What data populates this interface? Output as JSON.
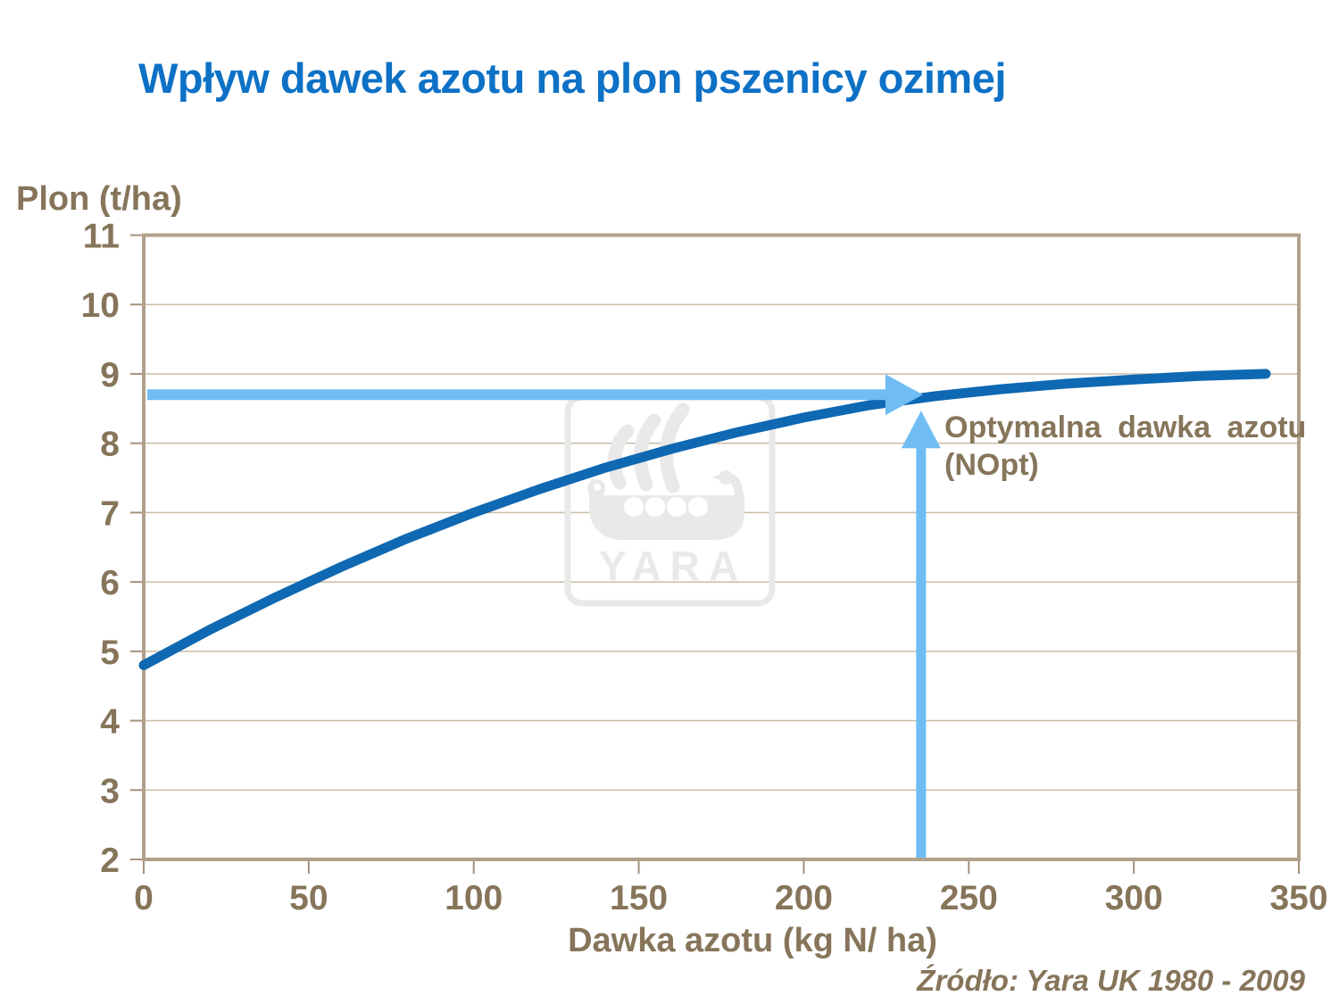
{
  "title": "Wpływ dawek azotu na plon pszenicy ozimej",
  "y_axis_title": "Plon (t/ha)",
  "x_axis_title": "Dawka azotu (kg N/ ha)",
  "source": "Źródło: Yara UK 1980 - 2009",
  "annotation": {
    "line1": "Optymalna dawka azotu",
    "line2": "(NOpt)"
  },
  "watermark": {
    "text": "YARA"
  },
  "colors": {
    "title": "#0d71c6",
    "text": "#86755a",
    "grid": "#c9bca7",
    "frame": "#b1a18b",
    "tick": "#a3927c",
    "curve": "#0e68b2",
    "arrow": "#70bdf4",
    "watermark": "#e9e9e9"
  },
  "chart_data": {
    "type": "line",
    "title": "Wpływ dawek azotu na plon pszenicy ozimej",
    "xlabel": "Dawka azotu (kg N/ ha)",
    "ylabel": "Plon (t/ha)",
    "xlim": [
      0,
      350
    ],
    "ylim": [
      2,
      11
    ],
    "x_ticks": [
      0,
      50,
      100,
      150,
      200,
      250,
      300,
      350
    ],
    "y_ticks": [
      2,
      3,
      4,
      5,
      6,
      7,
      8,
      9,
      10,
      11
    ],
    "grid": "horizontal",
    "legend": "none",
    "series": [
      {
        "name": "Plon pszenicy ozimej",
        "color": "#0e68b2",
        "x": [
          0,
          20,
          40,
          60,
          80,
          100,
          120,
          140,
          160,
          180,
          200,
          220,
          240,
          260,
          280,
          300,
          320,
          340
        ],
        "y": [
          4.8,
          5.31,
          5.78,
          6.22,
          6.63,
          7.0,
          7.34,
          7.65,
          7.92,
          8.16,
          8.37,
          8.55,
          8.68,
          8.78,
          8.86,
          8.92,
          8.97,
          9.0
        ]
      }
    ],
    "annotations": {
      "optimum": {
        "x": 235,
        "y": 8.7,
        "label": "Optymalna dawka azotu (NOpt)",
        "arrow_color": "#70bdf4"
      }
    },
    "source": "Źródło: Yara UK 1980 - 2009"
  }
}
